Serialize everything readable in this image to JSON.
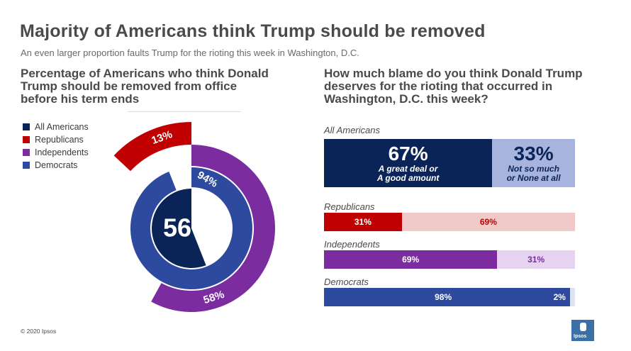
{
  "title": "Majority of Americans think Trump should be removed",
  "subtitle": "An even larger proportion faults Trump  for the rioting this week in Washington, D.C.",
  "left_question": "Percentage of Americans who think Donald Trump should be removed from office before his term ends",
  "right_question": "How much blame do you think Donald Trump deserves for the rioting that occurred in Washington, D.C. this week?",
  "legend": [
    "All Americans",
    "Republicans",
    "Independents",
    "Democrats"
  ],
  "colors": {
    "all": "#0b2457",
    "rep": "#c00000",
    "ind": "#7b2c9e",
    "dem": "#2e4a9e",
    "all_light": "#a7b4dd",
    "rep_light": "#f2c9c9",
    "ind_light": "#e6d3ef",
    "dem_light": "#dde3f3"
  },
  "chart_data": [
    {
      "type": "pie",
      "title": "Percentage of Americans who think Donald Trump should be removed from office before his term ends",
      "series": [
        {
          "name": "All Americans",
          "value": 56,
          "label": "56%"
        },
        {
          "name": "Democrats",
          "value": 94,
          "label": "94%"
        },
        {
          "name": "Independents",
          "value": 58,
          "label": "58%"
        },
        {
          "name": "Republicans",
          "value": 13,
          "label": "13%"
        }
      ]
    },
    {
      "type": "bar",
      "title": "How much blame do you think Donald Trump deserves for the rioting that occurred in Washington, D.C. this week?",
      "categories": [
        "All Americans",
        "Republicans",
        "Independents",
        "Democrats"
      ],
      "series": [
        {
          "name": "A great deal or A good amount",
          "values": [
            67,
            31,
            69,
            98
          ]
        },
        {
          "name": "Not so much or None at all",
          "values": [
            33,
            69,
            31,
            2
          ]
        }
      ],
      "labels_first": [
        "67%",
        "31%",
        "69%",
        "98%"
      ],
      "labels_second": [
        "33%",
        "69%",
        "31%",
        "2%"
      ],
      "caption_first": "A great deal or A good amount",
      "caption_second": "Not so much or None at all"
    }
  ],
  "footer": {
    "copyright": "© 2020 Ipsos",
    "logo": "Ipsos"
  }
}
